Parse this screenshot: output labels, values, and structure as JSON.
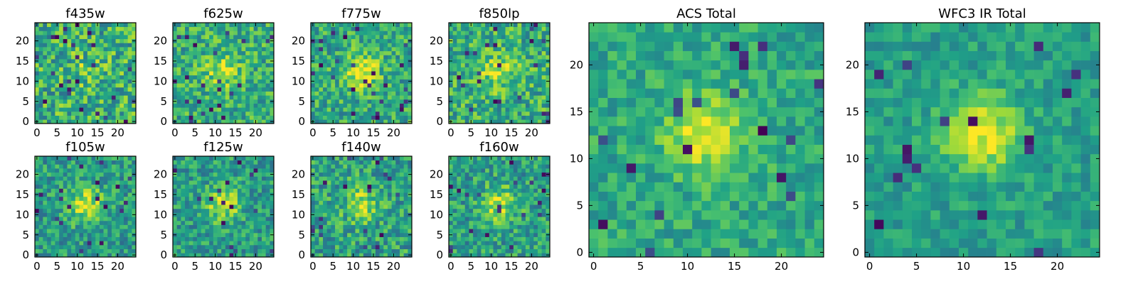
{
  "chart_data": [
    {
      "type": "heatmap",
      "title": "f435w",
      "x_ticks": [
        0,
        5,
        10,
        15,
        20
      ],
      "y_ticks": [
        0,
        5,
        10,
        15,
        20
      ],
      "xlim": [
        -0.5,
        24.5
      ],
      "ylim": [
        -0.5,
        24.5
      ],
      "grid_size": 25,
      "colormap": "viridis",
      "noise": 0.26,
      "center_value": 0.12,
      "mean_value": 0.63,
      "seed": 11
    },
    {
      "type": "heatmap",
      "title": "f625w",
      "x_ticks": [
        0,
        5,
        10,
        15,
        20
      ],
      "y_ticks": [
        0,
        5,
        10,
        15,
        20
      ],
      "xlim": [
        -0.5,
        24.5
      ],
      "ylim": [
        -0.5,
        24.5
      ],
      "grid_size": 25,
      "colormap": "viridis",
      "noise": 0.22,
      "center_value": 0.28,
      "mean_value": 0.62,
      "seed": 23
    },
    {
      "type": "heatmap",
      "title": "f775w",
      "x_ticks": [
        0,
        5,
        10,
        15,
        20
      ],
      "y_ticks": [
        0,
        5,
        10,
        15,
        20
      ],
      "xlim": [
        -0.5,
        24.5
      ],
      "ylim": [
        -0.5,
        24.5
      ],
      "grid_size": 25,
      "colormap": "viridis",
      "noise": 0.22,
      "center_value": 0.42,
      "mean_value": 0.6,
      "seed": 37
    },
    {
      "type": "heatmap",
      "title": "f850lp",
      "x_ticks": [
        0,
        5,
        10,
        15,
        20
      ],
      "y_ticks": [
        0,
        5,
        10,
        15,
        20
      ],
      "xlim": [
        -0.5,
        24.5
      ],
      "ylim": [
        -0.5,
        24.5
      ],
      "grid_size": 25,
      "colormap": "viridis",
      "noise": 0.24,
      "center_value": 0.3,
      "mean_value": 0.62,
      "seed": 41
    },
    {
      "type": "heatmap",
      "title": "f105w",
      "x_ticks": [
        0,
        5,
        10,
        15,
        20
      ],
      "y_ticks": [
        0,
        5,
        10,
        15,
        20
      ],
      "xlim": [
        -0.5,
        24.5
      ],
      "ylim": [
        -0.5,
        24.5
      ],
      "grid_size": 25,
      "colormap": "viridis",
      "noise": 0.2,
      "center_value": 0.38,
      "mean_value": 0.55,
      "seed": 53
    },
    {
      "type": "heatmap",
      "title": "f125w",
      "x_ticks": [
        0,
        5,
        10,
        15,
        20
      ],
      "y_ticks": [
        0,
        5,
        10,
        15,
        20
      ],
      "xlim": [
        -0.5,
        24.5
      ],
      "ylim": [
        -0.5,
        24.5
      ],
      "grid_size": 25,
      "colormap": "viridis",
      "noise": 0.2,
      "center_value": 0.36,
      "mean_value": 0.55,
      "seed": 67
    },
    {
      "type": "heatmap",
      "title": "f140w",
      "x_ticks": [
        0,
        5,
        10,
        15,
        20
      ],
      "y_ticks": [
        0,
        5,
        10,
        15,
        20
      ],
      "xlim": [
        -0.5,
        24.5
      ],
      "ylim": [
        -0.5,
        24.5
      ],
      "grid_size": 25,
      "colormap": "viridis",
      "noise": 0.22,
      "center_value": 0.3,
      "mean_value": 0.57,
      "seed": 79
    },
    {
      "type": "heatmap",
      "title": "f160w",
      "x_ticks": [
        0,
        5,
        10,
        15,
        20
      ],
      "y_ticks": [
        0,
        5,
        10,
        15,
        20
      ],
      "xlim": [
        -0.5,
        24.5
      ],
      "ylim": [
        -0.5,
        24.5
      ],
      "grid_size": 25,
      "colormap": "viridis",
      "noise": 0.21,
      "center_value": 0.34,
      "mean_value": 0.56,
      "seed": 83
    },
    {
      "type": "heatmap",
      "title": "ACS Total",
      "x_ticks": [
        0,
        5,
        10,
        15,
        20
      ],
      "y_ticks": [
        0,
        5,
        10,
        15,
        20
      ],
      "xlim": [
        -0.5,
        24.5
      ],
      "ylim": [
        -0.5,
        24.5
      ],
      "grid_size": 25,
      "colormap": "viridis",
      "noise": 0.15,
      "center_value": 0.38,
      "mean_value": 0.6,
      "seed": 97
    },
    {
      "type": "heatmap",
      "title": "WFC3 IR Total",
      "x_ticks": [
        0,
        5,
        10,
        15,
        20
      ],
      "y_ticks": [
        0,
        5,
        10,
        15,
        20
      ],
      "xlim": [
        -0.5,
        24.5
      ],
      "ylim": [
        -0.5,
        24.5
      ],
      "grid_size": 25,
      "colormap": "viridis",
      "noise": 0.13,
      "center_value": 0.4,
      "mean_value": 0.56,
      "seed": 101
    }
  ]
}
